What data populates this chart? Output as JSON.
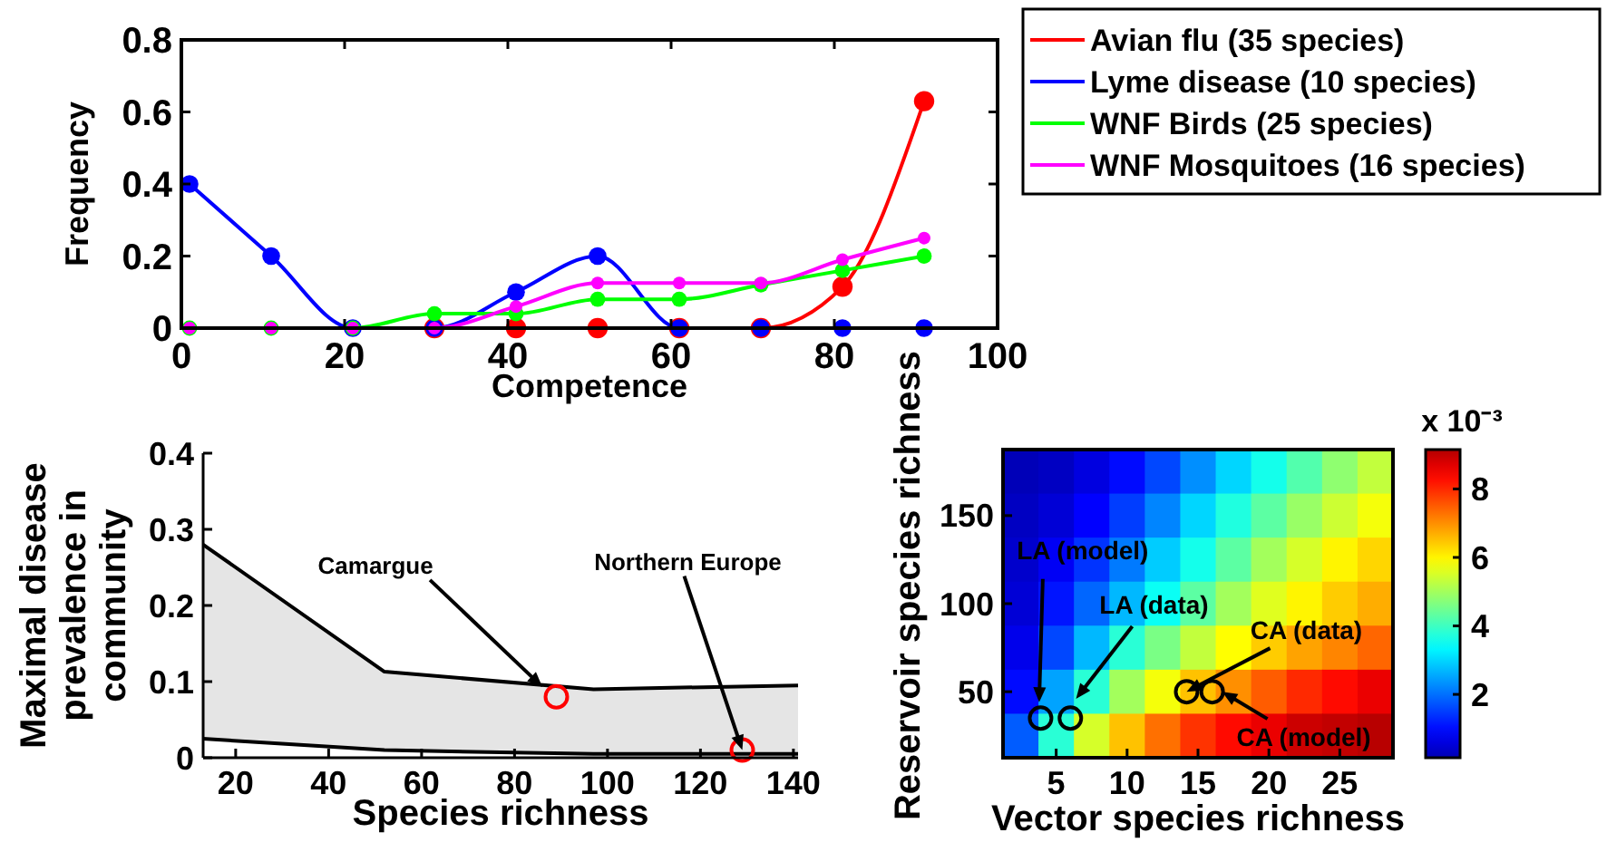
{
  "chart_data": [
    {
      "type": "line",
      "xlabel": "Competence",
      "ylabel": "Frequency",
      "xlim": [
        0,
        100
      ],
      "ylim": [
        0,
        0.8
      ],
      "xticks": [
        0,
        20,
        40,
        60,
        80,
        100
      ],
      "yticks": [
        0,
        0.2,
        0.4,
        0.6,
        0.8
      ],
      "legend": "top right",
      "marker": "circle",
      "grid": false,
      "x": [
        1,
        11,
        21,
        31,
        41,
        51,
        61,
        71,
        81,
        91
      ],
      "series": [
        {
          "name": "Avian flu (35 species)",
          "color": "#ff0000",
          "values": [
            null,
            null,
            null,
            0,
            0,
            0,
            0,
            0,
            0.115,
            0.63
          ]
        },
        {
          "name": "Lyme disease (10 species)",
          "color": "#0000ff",
          "values": [
            0.4,
            0.2,
            0,
            0,
            0.1,
            0.2,
            0,
            0,
            0,
            0
          ]
        },
        {
          "name": "WNF Birds (25 species)",
          "color": "#00ff00",
          "values": [
            0,
            0,
            0,
            0.04,
            0.04,
            0.08,
            0.08,
            0.12,
            0.16,
            0.2
          ]
        },
        {
          "name": "WNF Mosquitoes (16 species)",
          "color": "#ff00ff",
          "values": [
            0,
            0,
            0,
            0,
            0.06,
            0.125,
            0.125,
            0.125,
            0.19,
            0.25
          ]
        }
      ]
    },
    {
      "type": "area",
      "xlabel": "Species richness",
      "ylabel": "Maximal disease prevalence in community",
      "xlim": [
        13,
        141
      ],
      "ylim": [
        0,
        0.4
      ],
      "xticks": [
        20,
        40,
        60,
        80,
        100,
        120,
        140
      ],
      "yticks": [
        0,
        0.1,
        0.2,
        0.3,
        0.4
      ],
      "grid": false,
      "series": [
        {
          "type": "area",
          "color": "#e5e5e5",
          "x": [
            13,
            52,
            97,
            141
          ],
          "values": [
            0.28,
            0.113,
            0.09,
            0.095
          ]
        },
        {
          "type": "area",
          "color": "#ffffff",
          "x": [
            13,
            52,
            97,
            141
          ],
          "values": [
            0.025,
            0.01,
            0.005,
            0.005
          ]
        },
        {
          "type": "scatter",
          "color": "#ff0000",
          "x": [
            89,
            129
          ],
          "values": [
            0.08,
            0.01
          ]
        }
      ],
      "annotations": [
        {
          "text": "Camargue",
          "x": 86,
          "y": 0.093
        },
        {
          "text": "Northern Europe",
          "x": 129,
          "y": 0.01
        }
      ]
    },
    {
      "type": "heatmap",
      "xlabel": "Vector species richness",
      "ylabel": "Reservoir species richness",
      "clabel": "x 10⁻³",
      "clim": [
        0.15,
        9.15
      ],
      "cticks": [
        2,
        4,
        6,
        8
      ],
      "categories": [
        null,
        null,
        null,
        null,
        null,
        null,
        null,
        null,
        null,
        null,
        null
      ],
      "y_categories": [
        null,
        null,
        null,
        null,
        null,
        null,
        null
      ],
      "cells": [
        [
          0.2,
          0.3,
          0.6,
          1.0,
          1.6,
          2.3,
          3.0,
          3.6,
          4.2,
          4.8,
          5.3
        ],
        [
          0.3,
          0.5,
          0.9,
          1.5,
          2.2,
          3.0,
          3.7,
          4.3,
          4.9,
          5.4,
          5.8
        ],
        [
          0.4,
          0.8,
          1.4,
          2.1,
          2.9,
          3.6,
          4.3,
          5.0,
          5.5,
          6.0,
          6.3
        ],
        [
          0.5,
          1.1,
          1.9,
          2.7,
          3.5,
          4.3,
          5.0,
          5.6,
          6.0,
          6.4,
          6.7
        ],
        [
          0.7,
          1.6,
          2.7,
          3.8,
          4.6,
          5.3,
          5.9,
          6.4,
          6.8,
          7.1,
          7.4
        ],
        [
          1.0,
          2.5,
          3.8,
          5.0,
          5.8,
          6.5,
          7.0,
          7.5,
          8.0,
          8.3,
          8.6
        ],
        [
          1.8,
          3.8,
          5.5,
          6.5,
          7.3,
          7.9,
          8.3,
          8.6,
          8.9,
          9.0,
          9.1
        ]
      ]
    },
    {
      "type": "scatter",
      "xlim": [
        1.25,
        28.75
      ],
      "ylim": [
        12.5,
        187.5
      ],
      "xticks": [
        5,
        10,
        15,
        20,
        25
      ],
      "yticks": [
        50,
        100,
        150
      ],
      "series": [
        {
          "color": "#000000",
          "x": [
            3.9,
            6,
            14.2,
            16
          ],
          "values": [
            35,
            35,
            50,
            50
          ]
        }
      ],
      "annotations": [
        {
          "text": "LA (model)",
          "x": 3.8,
          "y": 44
        },
        {
          "text": "LA (data)",
          "x": 6.4,
          "y": 46
        },
        {
          "text": "CA (data)",
          "x": 14.2,
          "y": 50
        },
        {
          "text": "CA (model)",
          "x": 16.7,
          "y": 50
        }
      ]
    }
  ]
}
